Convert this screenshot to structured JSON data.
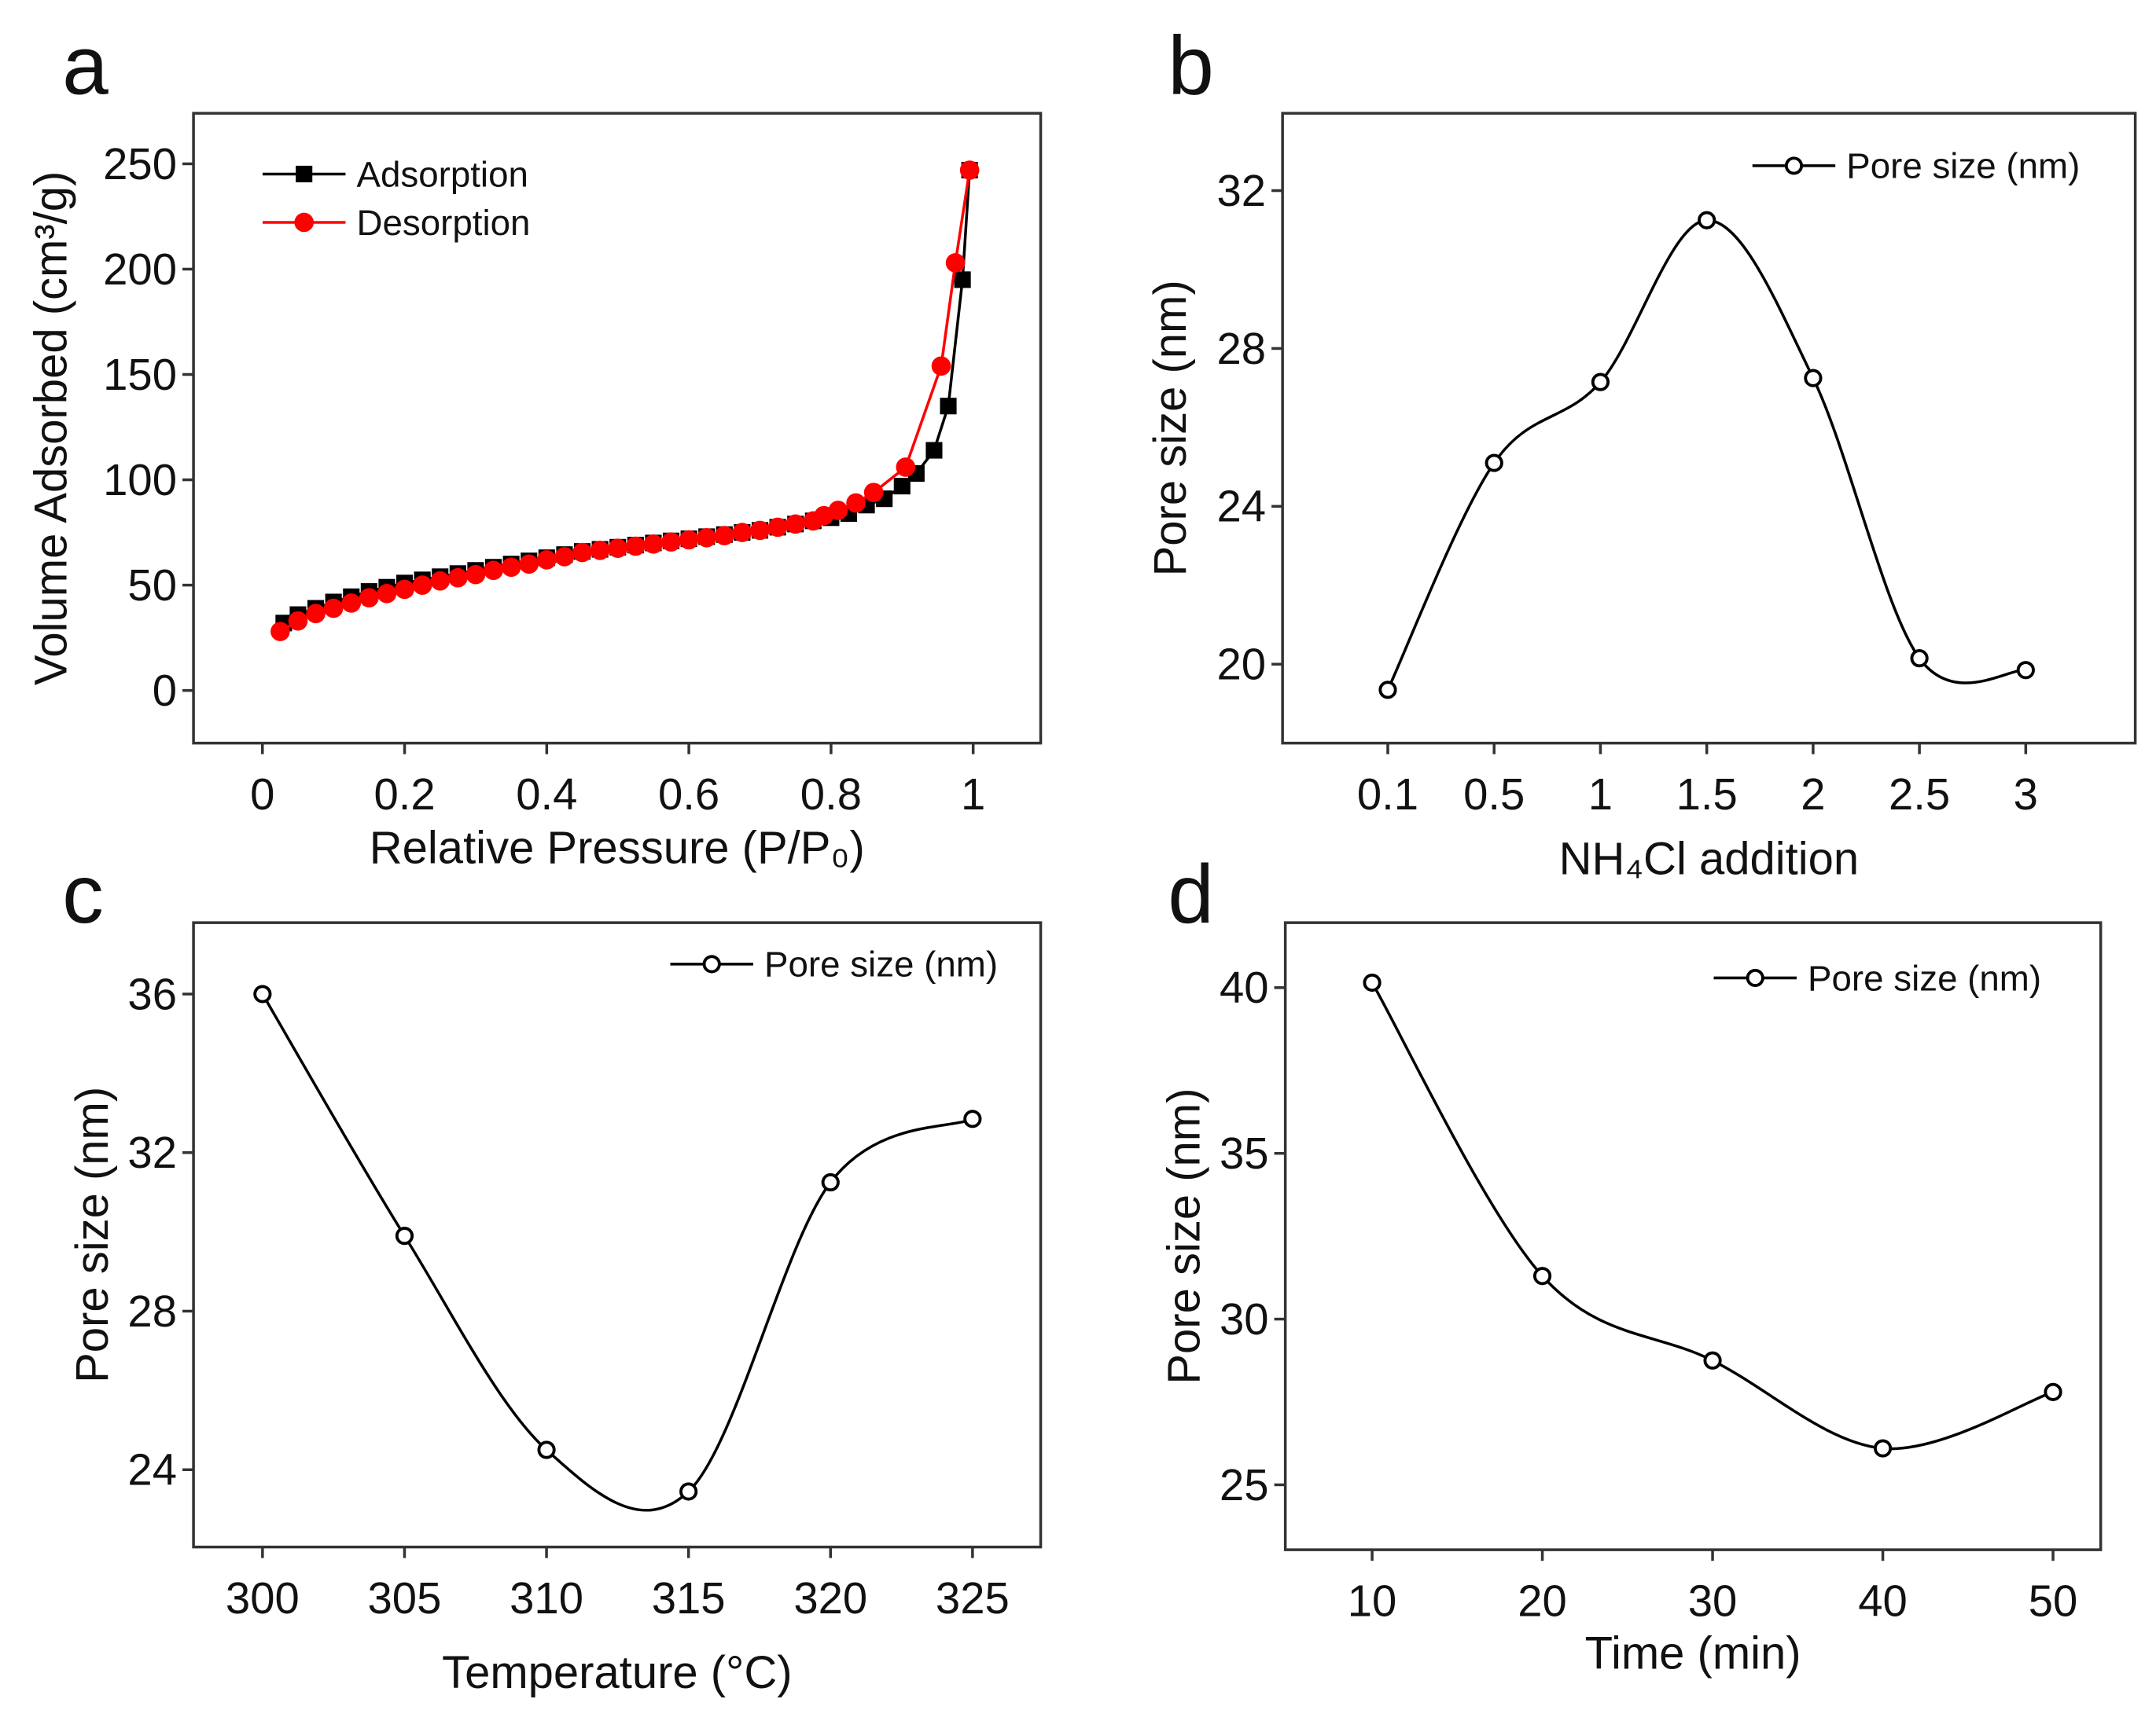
{
  "chart_data": [
    {
      "panel": "a",
      "type": "scatter",
      "xlabel": "Relative Pressure (P/P₀)",
      "ylabel": "Volume Adsorbed (cm³/g)",
      "xlim": [
        -0.097,
        1.095
      ],
      "ylim": [
        -25,
        274
      ],
      "xticks": [
        0,
        0.2,
        0.4,
        0.6,
        0.8,
        1
      ],
      "xticklabels": [
        "0",
        "0.2",
        "0.4",
        "0.6",
        "0.8",
        "1"
      ],
      "yticks": [
        0,
        50,
        100,
        150,
        200,
        250
      ],
      "yticklabels": [
        "0",
        "50",
        "100",
        "150",
        "200",
        "250"
      ],
      "legend_position": "top-left",
      "series": [
        {
          "name": "Adsorption",
          "color": "#000000",
          "marker": "square",
          "x": [
            0.03,
            0.05,
            0.075,
            0.1,
            0.125,
            0.15,
            0.175,
            0.2,
            0.225,
            0.25,
            0.275,
            0.3,
            0.325,
            0.35,
            0.375,
            0.4,
            0.425,
            0.45,
            0.475,
            0.5,
            0.525,
            0.55,
            0.575,
            0.6,
            0.625,
            0.65,
            0.675,
            0.7,
            0.725,
            0.75,
            0.775,
            0.8,
            0.825,
            0.85,
            0.875,
            0.9,
            0.92,
            0.945,
            0.965,
            0.985,
            0.995
          ],
          "y": [
            32,
            36,
            39,
            42,
            44.5,
            47,
            49,
            51,
            52.5,
            54,
            55.5,
            57,
            58.5,
            60,
            61.5,
            63,
            64.5,
            66,
            67,
            68,
            69,
            70,
            71,
            72,
            73,
            74,
            75,
            76,
            77.5,
            79,
            80.5,
            82,
            84,
            88,
            91,
            97,
            103,
            114,
            135,
            195,
            247
          ]
        },
        {
          "name": "Desorption",
          "color": "#ff0000",
          "marker": "circle",
          "x": [
            0.025,
            0.05,
            0.075,
            0.1,
            0.125,
            0.15,
            0.175,
            0.2,
            0.225,
            0.25,
            0.275,
            0.3,
            0.325,
            0.35,
            0.375,
            0.4,
            0.425,
            0.45,
            0.475,
            0.5,
            0.525,
            0.55,
            0.575,
            0.6,
            0.625,
            0.65,
            0.675,
            0.7,
            0.725,
            0.75,
            0.775,
            0.79,
            0.81,
            0.835,
            0.86,
            0.905,
            0.955,
            0.975,
            0.995
          ],
          "y": [
            28,
            33,
            36.5,
            39,
            41.5,
            44,
            46,
            48,
            50,
            52,
            53.5,
            55,
            57,
            58.5,
            60,
            62,
            63.5,
            65.5,
            66.5,
            67.5,
            68.5,
            69.5,
            70.5,
            71.5,
            72.5,
            73.5,
            75,
            76,
            77.5,
            79,
            80.5,
            83,
            85.5,
            89,
            94,
            106,
            154,
            203,
            247
          ]
        }
      ]
    },
    {
      "panel": "b",
      "type": "line",
      "xlabel": "NH₄Cl addition",
      "ylabel": "Pore size (nm)",
      "categories": [
        "0.1",
        "0.5",
        "1",
        "1.5",
        "2",
        "2.5",
        "3"
      ],
      "xlim": [
        -0.99,
        7.03
      ],
      "ylim": [
        18.0,
        33.96
      ],
      "yticks": [
        20,
        24,
        28,
        32
      ],
      "yticklabels": [
        "20",
        "24",
        "28",
        "32"
      ],
      "legend_position": "top-right",
      "series": [
        {
          "name": "Pore size (nm)",
          "color": "#000000",
          "marker": "open-circle",
          "x": [
            0,
            1,
            2,
            3,
            4,
            5,
            6
          ],
          "y": [
            19.35,
            25.1,
            27.15,
            31.25,
            27.25,
            20.15,
            19.85
          ]
        }
      ]
    },
    {
      "panel": "c",
      "type": "line",
      "xlabel": "Temperature (°C)",
      "ylabel": "Pore size (nm)",
      "xlim": [
        297.57,
        327.4
      ],
      "ylim": [
        22.05,
        37.8
      ],
      "xticks": [
        300,
        305,
        310,
        315,
        320,
        325
      ],
      "xticklabels": [
        "300",
        "305",
        "310",
        "315",
        "320",
        "325"
      ],
      "yticks": [
        24,
        28,
        32,
        36
      ],
      "yticklabels": [
        "24",
        "28",
        "32",
        "36"
      ],
      "legend_position": "top-right",
      "series": [
        {
          "name": "Pore size (nm)",
          "color": "#000000",
          "marker": "open-circle",
          "x": [
            300,
            305,
            310,
            315,
            320,
            325
          ],
          "y": [
            36.0,
            29.9,
            24.5,
            23.45,
            31.25,
            32.85
          ]
        }
      ]
    },
    {
      "panel": "d",
      "type": "line",
      "xlabel": "Time (min)",
      "ylabel": "Pore size (nm)",
      "xlim": [
        4.9,
        52.8
      ],
      "ylim": [
        23.04,
        41.96
      ],
      "xticks": [
        10,
        20,
        30,
        40,
        50
      ],
      "xticklabels": [
        "10",
        "20",
        "30",
        "40",
        "50"
      ],
      "yticks": [
        25,
        30,
        35,
        40
      ],
      "yticklabels": [
        "25",
        "30",
        "35",
        "40"
      ],
      "legend_position": "top-right",
      "series": [
        {
          "name": "Pore size (nm)",
          "color": "#000000",
          "marker": "open-circle",
          "x": [
            10,
            20,
            30,
            40,
            50
          ],
          "y": [
            40.15,
            31.3,
            28.75,
            26.1,
            27.8
          ]
        }
      ]
    }
  ]
}
